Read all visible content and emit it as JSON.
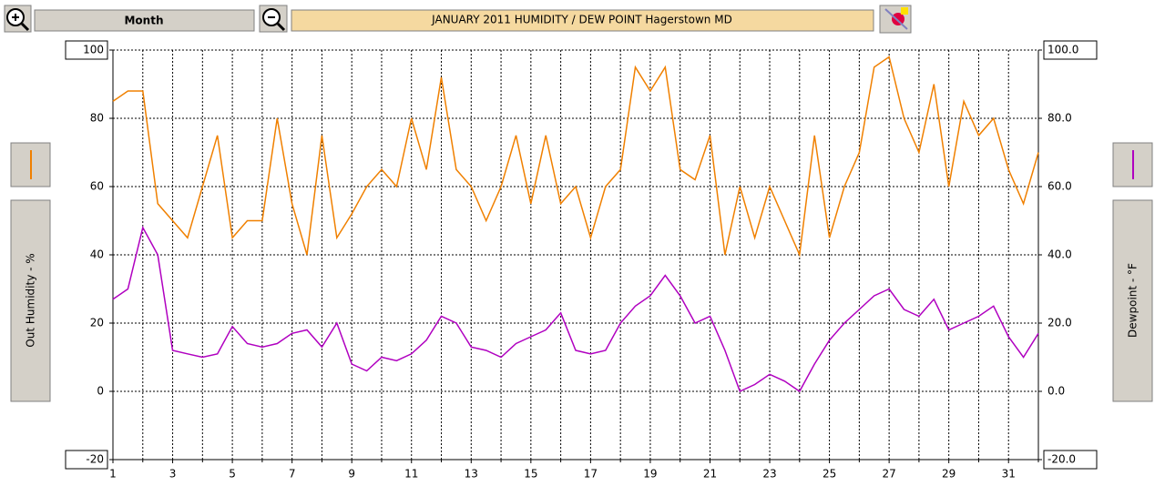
{
  "chart_data": {
    "type": "line",
    "title": "JANUARY 2011   HUMIDITY / DEW POINT  Hagerstown MD",
    "period": "Month",
    "ylabel": "Out Humidity - %",
    "y2label": "Dewpoint - °F",
    "x": [
      1,
      1.5,
      2,
      2.5,
      3,
      3.5,
      4,
      4.5,
      5,
      5.5,
      6,
      6.5,
      7,
      7.5,
      8,
      8.5,
      9,
      9.5,
      10,
      10.5,
      11,
      11.5,
      12,
      12.5,
      13,
      13.5,
      14,
      14.5,
      15,
      15.5,
      16,
      16.5,
      17,
      17.5,
      18,
      18.5,
      19,
      19.5,
      20,
      20.5,
      21,
      21.5,
      22,
      22.5,
      23,
      23.5,
      24,
      24.5,
      25,
      25.5,
      26,
      26.5,
      27,
      27.5,
      28,
      28.5,
      29,
      29.5,
      30,
      30.5,
      31,
      31.5,
      32
    ],
    "series": [
      {
        "color": "#f08000",
        "values": [
          85,
          88,
          88,
          55,
          50,
          45,
          60,
          75,
          45,
          50,
          50,
          80,
          55,
          40,
          75,
          45,
          52,
          60,
          65,
          60,
          80,
          65,
          92,
          65,
          60,
          50,
          60,
          75,
          55,
          75,
          55,
          60,
          45,
          60,
          65,
          95,
          88,
          95,
          65,
          62,
          75,
          40,
          60,
          45,
          60,
          50,
          40,
          75,
          45,
          60,
          70,
          95,
          98,
          80,
          70,
          90,
          60,
          85,
          75,
          80,
          65,
          55,
          70
        ]
      },
      {
        "color": "#b000c0",
        "axis": "y2",
        "values": [
          27,
          30,
          48,
          40,
          12,
          11,
          10,
          11,
          19,
          14,
          13,
          14,
          17,
          18,
          13,
          20,
          8,
          6,
          10,
          9,
          11,
          15,
          22,
          20,
          13,
          12,
          10,
          14,
          16,
          18,
          23,
          12,
          11,
          12,
          20,
          25,
          28,
          34,
          28,
          20,
          22,
          12,
          0,
          2,
          5,
          3,
          0,
          8,
          15,
          20,
          24,
          28,
          30,
          24,
          22,
          27,
          18,
          20,
          22,
          25,
          16,
          10,
          17
        ]
      }
    ],
    "xlim": [
      1,
      32
    ],
    "xticks": [
      1,
      3,
      5,
      7,
      9,
      11,
      13,
      15,
      17,
      19,
      21,
      23,
      25,
      27,
      29,
      31
    ],
    "xminor_ticks": [
      2,
      4,
      6,
      8,
      10,
      12,
      14,
      16,
      18,
      20,
      22,
      24,
      26,
      28,
      30,
      32
    ],
    "ylim": [
      -20,
      100
    ],
    "yticks": [
      -20,
      0,
      20,
      40,
      60,
      80,
      100
    ],
    "y2lim": [
      -20,
      100
    ],
    "y2ticks": [
      {
        "value": -20,
        "label": "-20.0"
      },
      {
        "value": 0,
        "label": "0.0"
      },
      {
        "value": 20,
        "label": "20.0"
      },
      {
        "value": 40,
        "label": "40.0"
      },
      {
        "value": 60,
        "label": "60.0"
      },
      {
        "value": 80,
        "label": "80.0"
      },
      {
        "value": 100,
        "label": "100.0"
      }
    ],
    "grid": true
  }
}
